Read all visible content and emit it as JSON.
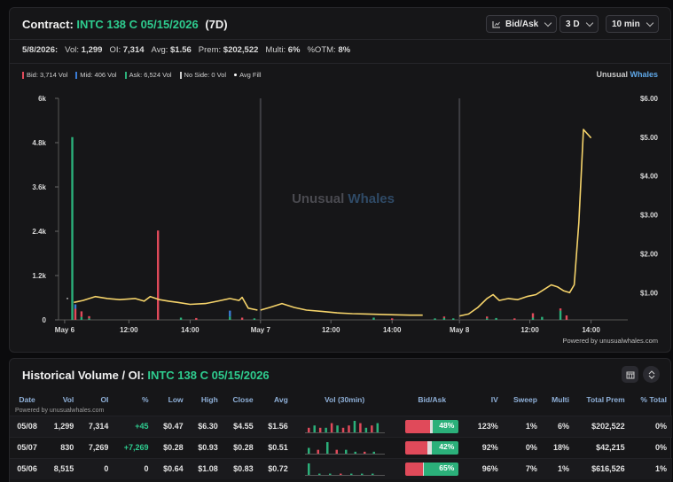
{
  "header": {
    "label": "Contract:",
    "contract": "INTC 138 C 05/15/2026",
    "dte": "(7D)",
    "controls": {
      "bidask": "Bid/Ask",
      "range": "3 D",
      "interval": "10 min"
    }
  },
  "stats": {
    "date": "5/8/2026:",
    "vol_label": "Vol:",
    "vol": "1,299",
    "oi_label": "OI:",
    "oi": "7,314",
    "avg_label": "Avg:",
    "avg": "$1.56",
    "prem_label": "Prem:",
    "prem": "$202,522",
    "multi_label": "Multi:",
    "multi": "6%",
    "otm_label": "%OTM:",
    "otm": "8%"
  },
  "legend": {
    "bid": "Bid: 3,714 Vol",
    "mid": "Mid: 406 Vol",
    "ask": "Ask: 6,524 Vol",
    "noside": "No Side: 0 Vol",
    "avgfill": "Avg Fill"
  },
  "brand": {
    "a": "Unusual",
    "b": "Whales"
  },
  "watermark": {
    "a": "Unusual",
    "b": "Whales"
  },
  "colors": {
    "bid": "#e04a5a",
    "mid": "#3a7bd5",
    "ask": "#2bb07a",
    "noside": "#9a9a9a",
    "line": "#f5d36a",
    "accent": "#2ecc8f"
  },
  "chart_data": {
    "type": "bar",
    "y_left_ticks": [
      "0",
      "1.2k",
      "2.4k",
      "3.6k",
      "4.8k",
      "6k"
    ],
    "y_left_range": [
      0,
      6000
    ],
    "y_right_ticks": [
      "$1.00",
      "$2.00",
      "$3.00",
      "$4.00",
      "$5.00",
      "$6.00"
    ],
    "y_right_range": [
      0.3,
      6.0
    ],
    "x_ticks": [
      "May 6",
      "12:00",
      "14:00",
      "May 7",
      "12:00",
      "14:00",
      "May 8",
      "12:00",
      "14:00"
    ],
    "day_separators": [
      "May 7",
      "May 8"
    ],
    "bars": [
      {
        "t": 0.45,
        "bid": 0,
        "mid": 0,
        "ask": 4950
      },
      {
        "t": 0.55,
        "bid": 300,
        "mid": 120,
        "ask": 0
      },
      {
        "t": 0.75,
        "bid": 150,
        "mid": 0,
        "ask": 80
      },
      {
        "t": 1.0,
        "bid": 60,
        "mid": 0,
        "ask": 40
      },
      {
        "t": 3.25,
        "bid": 2420,
        "mid": 0,
        "ask": 0
      },
      {
        "t": 4.0,
        "bid": 0,
        "mid": 0,
        "ask": 60
      },
      {
        "t": 4.5,
        "bid": 50,
        "mid": 0,
        "ask": 0
      },
      {
        "t": 5.6,
        "bid": 0,
        "mid": 160,
        "ask": 90
      },
      {
        "t": 6.0,
        "bid": 60,
        "mid": 0,
        "ask": 0
      },
      {
        "t": 6.4,
        "bid": 0,
        "mid": 0,
        "ask": 40
      },
      {
        "t": 10.3,
        "bid": 0,
        "mid": 0,
        "ask": 60
      },
      {
        "t": 10.9,
        "bid": 40,
        "mid": 0,
        "ask": 0
      },
      {
        "t": 12.3,
        "bid": 0,
        "mid": 0,
        "ask": 40
      },
      {
        "t": 12.6,
        "bid": 40,
        "mid": 0,
        "ask": 50
      },
      {
        "t": 12.9,
        "bid": 0,
        "mid": 0,
        "ask": 40
      },
      {
        "t": 14.0,
        "bid": 50,
        "mid": 0,
        "ask": 40
      },
      {
        "t": 14.3,
        "bid": 0,
        "mid": 0,
        "ask": 50
      },
      {
        "t": 14.9,
        "bid": 40,
        "mid": 0,
        "ask": 0
      },
      {
        "t": 15.5,
        "bid": 120,
        "mid": 0,
        "ask": 60
      },
      {
        "t": 15.8,
        "bid": 0,
        "mid": 0,
        "ask": 80
      },
      {
        "t": 16.4,
        "bid": 60,
        "mid": 0,
        "ask": 250
      },
      {
        "t": 16.6,
        "bid": 120,
        "mid": 0,
        "ask": 0
      }
    ],
    "avg_fill_day1": [
      [
        0.5,
        0.75
      ],
      [
        0.8,
        0.8
      ],
      [
        1.2,
        0.9
      ],
      [
        1.6,
        0.85
      ],
      [
        2.0,
        0.82
      ],
      [
        2.5,
        0.85
      ],
      [
        2.8,
        0.78
      ],
      [
        3.0,
        0.9
      ],
      [
        3.3,
        0.82
      ],
      [
        3.6,
        0.78
      ],
      [
        3.9,
        0.75
      ],
      [
        4.3,
        0.7
      ],
      [
        4.8,
        0.72
      ],
      [
        5.2,
        0.78
      ],
      [
        5.6,
        0.85
      ],
      [
        5.9,
        0.8
      ],
      [
        6.0,
        0.88
      ],
      [
        6.2,
        0.6
      ],
      [
        6.5,
        0.55
      ]
    ],
    "avg_fill_day2": [
      [
        6.6,
        0.55
      ],
      [
        6.9,
        0.62
      ],
      [
        7.3,
        0.72
      ],
      [
        7.7,
        0.62
      ],
      [
        8.1,
        0.55
      ],
      [
        8.6,
        0.52
      ],
      [
        9.1,
        0.48
      ],
      [
        9.6,
        0.46
      ],
      [
        10.1,
        0.45
      ],
      [
        10.6,
        0.44
      ],
      [
        11.0,
        0.43
      ],
      [
        11.5,
        0.42
      ],
      [
        11.9,
        0.42
      ]
    ],
    "avg_fill_day3": [
      [
        13.1,
        0.4
      ],
      [
        13.4,
        0.45
      ],
      [
        13.7,
        0.62
      ],
      [
        14.0,
        0.85
      ],
      [
        14.2,
        0.95
      ],
      [
        14.4,
        0.8
      ],
      [
        14.7,
        0.85
      ],
      [
        15.0,
        0.82
      ],
      [
        15.3,
        0.9
      ],
      [
        15.6,
        0.95
      ],
      [
        15.9,
        1.1
      ],
      [
        16.1,
        1.2
      ],
      [
        16.3,
        1.15
      ],
      [
        16.5,
        1.05
      ],
      [
        16.7,
        1.0
      ],
      [
        16.85,
        1.2
      ],
      [
        17.0,
        2.8
      ],
      [
        17.15,
        5.2
      ],
      [
        17.4,
        4.98
      ]
    ]
  },
  "powered_by": "Powered by unusualwhales.com",
  "historical": {
    "title": "Historical Volume / OI:",
    "contract": "INTC 138 C 05/15/2026",
    "columns": [
      "Date",
      "Vol",
      "OI",
      "%",
      "Low",
      "High",
      "Close",
      "Avg",
      "Vol (30min)",
      "Bid/Ask",
      "IV",
      "Sweep",
      "Multi",
      "Total Prem",
      "% Total"
    ],
    "powered": "Powered by unusualwhales.com",
    "rows": [
      {
        "date": "05/08",
        "vol": "1,299",
        "oi": "7,314",
        "pct": "+45",
        "low": "$0.47",
        "high": "$6.30",
        "close": "$4.55",
        "avg": "$1.56",
        "ba_bid": 0.47,
        "ba_mid": 0.05,
        "ba_ask": 0.48,
        "ba_label": "48%",
        "iv": "123%",
        "sweep": "1%",
        "multi": "6%",
        "prem": "$202,522",
        "total": "0%",
        "mini": [
          {
            "b": 2,
            "a": 0
          },
          {
            "b": 0,
            "a": 3
          },
          {
            "b": 2,
            "a": 0
          },
          {
            "b": 0,
            "a": 2
          },
          {
            "b": 4,
            "a": 0
          },
          {
            "b": 0,
            "a": 3
          },
          {
            "b": 2,
            "a": 0
          },
          {
            "b": 3,
            "a": 0
          },
          {
            "b": 0,
            "a": 5
          },
          {
            "b": 4,
            "a": 0
          },
          {
            "b": 0,
            "a": 2
          },
          {
            "b": 3,
            "a": 0
          },
          {
            "b": 0,
            "a": 4
          }
        ]
      },
      {
        "date": "05/07",
        "vol": "830",
        "oi": "7,269",
        "pct": "+7,269",
        "low": "$0.28",
        "high": "$0.93",
        "close": "$0.28",
        "avg": "$0.51",
        "ba_bid": 0.42,
        "ba_mid": 0.08,
        "ba_ask": 0.5,
        "ba_label": "42%",
        "iv": "92%",
        "sweep": "0%",
        "multi": "18%",
        "prem": "$42,215",
        "total": "0%",
        "mini": [
          {
            "b": 0,
            "a": 3
          },
          {
            "b": 2,
            "a": 0
          },
          {
            "b": 0,
            "a": 6
          },
          {
            "b": 2,
            "a": 0
          },
          {
            "b": 0,
            "a": 2
          },
          {
            "b": 0,
            "a": 1
          },
          {
            "b": 1,
            "a": 0
          },
          {
            "b": 0,
            "a": 1
          }
        ]
      },
      {
        "date": "05/06",
        "vol": "8,515",
        "oi": "0",
        "pct": "0",
        "low": "$0.64",
        "high": "$1.08",
        "close": "$0.83",
        "avg": "$0.72",
        "ba_bid": 0.33,
        "ba_mid": 0.02,
        "ba_ask": 0.65,
        "ba_label": "65%",
        "iv": "96%",
        "sweep": "7%",
        "multi": "1%",
        "prem": "$616,526",
        "total": "1%",
        "mini": [
          {
            "b": 0,
            "a": 9
          },
          {
            "b": 0,
            "a": 1
          },
          {
            "b": 0,
            "a": 1
          },
          {
            "b": 1,
            "a": 0
          },
          {
            "b": 0,
            "a": 1
          },
          {
            "b": 0,
            "a": 1
          },
          {
            "b": 0,
            "a": 1
          }
        ]
      }
    ]
  }
}
